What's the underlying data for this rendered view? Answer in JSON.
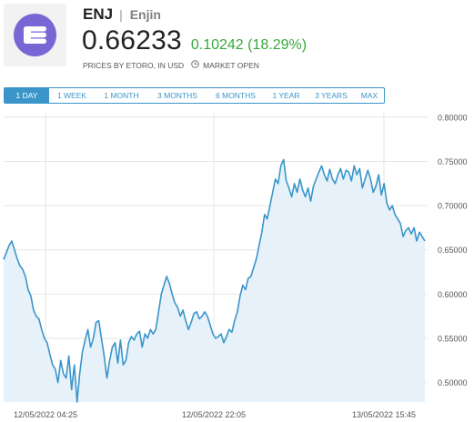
{
  "asset": {
    "ticker": "ENJ",
    "separator": "|",
    "name": "Enjin",
    "logo_icon": "enjin-logo-icon",
    "logo_color": "#7866d5",
    "price": "0.66233",
    "change": "0.10242 (18.29%)",
    "change_color": "#37a93d",
    "source": "PRICES BY ETORO, IN USD",
    "market_status": "MARKET OPEN",
    "status_icon": "clock-icon"
  },
  "ranges": [
    {
      "label": "1 DAY",
      "active": true
    },
    {
      "label": "1 WEEK",
      "active": false
    },
    {
      "label": "1 MONTH",
      "active": false
    },
    {
      "label": "3 MONTHS",
      "active": false
    },
    {
      "label": "6 MONTHS",
      "active": false
    },
    {
      "label": "1 YEAR",
      "active": false
    },
    {
      "label": "3 YEARS",
      "active": false
    },
    {
      "label": "MAX",
      "active": false
    }
  ],
  "chart_data": {
    "type": "area",
    "line_color": "#3a95c9",
    "fill_color": "#e6f1fa",
    "y_ticks": [
      "0.80000",
      "0.75000",
      "0.70000",
      "0.65000",
      "0.60000",
      "0.55000",
      "0.50000"
    ],
    "ylim": [
      0.478,
      0.805
    ],
    "x_ticks": [
      "12/05/2022 04:25",
      "12/05/2022 22:05",
      "13/05/2022 15:45"
    ],
    "grid": true,
    "series": [
      {
        "values": [
          0.639,
          0.647,
          0.655,
          0.66,
          0.65,
          0.64,
          0.632,
          0.628,
          0.62,
          0.605,
          0.598,
          0.582,
          0.575,
          0.572,
          0.56,
          0.55,
          0.545,
          0.532,
          0.52,
          0.515,
          0.5,
          0.525,
          0.51,
          0.505,
          0.53,
          0.492,
          0.52,
          0.478,
          0.51,
          0.535,
          0.548,
          0.56,
          0.54,
          0.55,
          0.568,
          0.57,
          0.55,
          0.53,
          0.505,
          0.525,
          0.54,
          0.545,
          0.522,
          0.548,
          0.52,
          0.525,
          0.545,
          0.552,
          0.548,
          0.555,
          0.558,
          0.54,
          0.555,
          0.55,
          0.56,
          0.555,
          0.56,
          0.58,
          0.6,
          0.61,
          0.62,
          0.612,
          0.6,
          0.59,
          0.585,
          0.575,
          0.582,
          0.57,
          0.56,
          0.568,
          0.578,
          0.58,
          0.572,
          0.575,
          0.58,
          0.575,
          0.565,
          0.555,
          0.55,
          0.552,
          0.555,
          0.545,
          0.552,
          0.56,
          0.557,
          0.57,
          0.58,
          0.598,
          0.61,
          0.605,
          0.618,
          0.62,
          0.63,
          0.64,
          0.655,
          0.67,
          0.69,
          0.685,
          0.7,
          0.715,
          0.73,
          0.725,
          0.745,
          0.752,
          0.728,
          0.72,
          0.71,
          0.725,
          0.715,
          0.73,
          0.718,
          0.71,
          0.72,
          0.705,
          0.722,
          0.73,
          0.738,
          0.745,
          0.735,
          0.728,
          0.741,
          0.73,
          0.725,
          0.735,
          0.742,
          0.73,
          0.74,
          0.738,
          0.728,
          0.745,
          0.735,
          0.742,
          0.72,
          0.73,
          0.74,
          0.73,
          0.715,
          0.722,
          0.735,
          0.712,
          0.725,
          0.703,
          0.695,
          0.7,
          0.69,
          0.685,
          0.68,
          0.665,
          0.672,
          0.675,
          0.668,
          0.675,
          0.66,
          0.67,
          0.665,
          0.66
        ]
      }
    ]
  }
}
